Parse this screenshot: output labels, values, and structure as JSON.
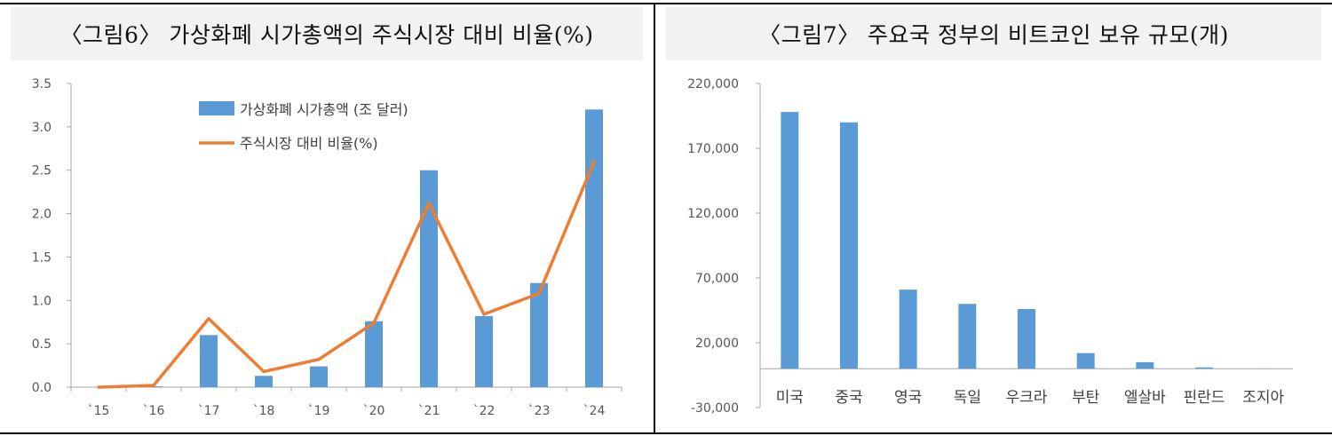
{
  "colors": {
    "bar": "#5b9bd5",
    "line": "#ed7d31",
    "axis": "#a6a6a6",
    "title_band": "#f2f2f2"
  },
  "chart_data": [
    {
      "type": "bar",
      "title": "〈그림6〉 가상화폐 시가총액의 주식시장 대비 비율(%)",
      "categories": [
        "`15",
        "`16",
        "`17",
        "`18",
        "`19",
        "`20",
        "`21",
        "`22",
        "`23",
        "`24"
      ],
      "series": [
        {
          "name": "가상화폐 시가총액 (조 달러)",
          "type": "bar",
          "values": [
            0.0,
            0.01,
            0.6,
            0.13,
            0.24,
            0.76,
            2.5,
            0.82,
            1.2,
            3.2
          ]
        },
        {
          "name": "주식시장 대비 비율(%)",
          "type": "line",
          "values": [
            0.0,
            0.02,
            0.79,
            0.18,
            0.32,
            0.74,
            2.12,
            0.84,
            1.08,
            2.6
          ]
        }
      ],
      "ylim": [
        0,
        3.5
      ],
      "yticks": [
        "0.0",
        "0.5",
        "1.0",
        "1.5",
        "2.0",
        "2.5",
        "3.0",
        "3.5"
      ],
      "grid": false,
      "legend": "top-left inside plot"
    },
    {
      "type": "bar",
      "title": "〈그림7〉 주요국 정부의 비트코인 보유 규모(개)",
      "categories": [
        "미국",
        "중국",
        "영국",
        "독일",
        "우크라",
        "부탄",
        "엘살바",
        "핀란드",
        "조지아"
      ],
      "values": [
        198000,
        190000,
        61000,
        50000,
        46000,
        12000,
        5000,
        1000,
        66
      ],
      "ylim": [
        -30000,
        220000
      ],
      "yticks": [
        "-30,000",
        "20,000",
        "70,000",
        "120,000",
        "170,000",
        "220,000"
      ],
      "grid": false
    }
  ]
}
